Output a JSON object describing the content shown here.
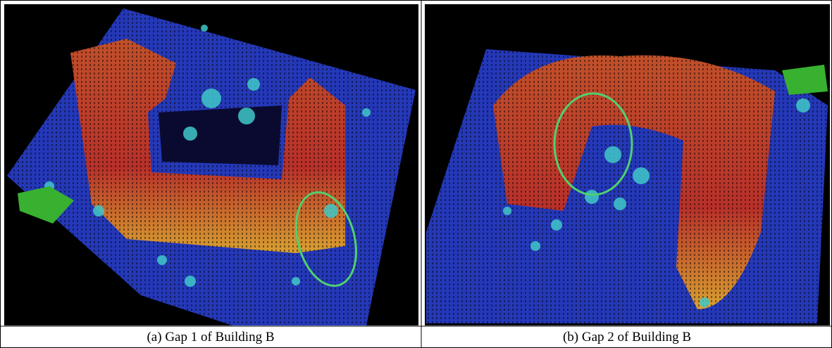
{
  "figure": {
    "panels": [
      {
        "caption": "(a) Gap 1 of Building B"
      },
      {
        "caption": "(b) Gap 2 of Building B"
      }
    ]
  }
}
